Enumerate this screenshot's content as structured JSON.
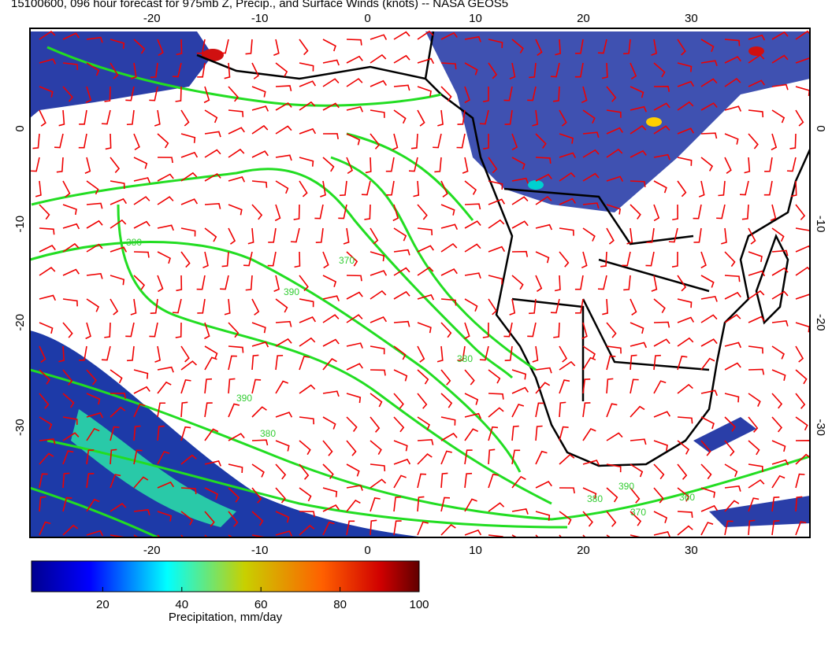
{
  "title": "15100600, 096 hour forecast for 975mb Z, Precip., and Surface Winds (knots) -- NASA GEOS5",
  "map": {
    "lonlim": [
      -31.3,
      41
    ],
    "latlim": [
      10.5,
      -39.5
    ],
    "lon_ticks": [
      -20,
      -10,
      0,
      10,
      20,
      30
    ],
    "lat_ticks": [
      0,
      -10,
      -20,
      -30
    ],
    "contour_labels": [
      "380",
      "370",
      "390",
      "380",
      "390",
      "380",
      "390",
      "370",
      "360",
      "380"
    ]
  },
  "colorbar": {
    "label": "Precipitation, mm/day",
    "lim": [
      2,
      100
    ],
    "ticks": [
      20,
      40,
      60,
      80,
      100
    ]
  }
}
